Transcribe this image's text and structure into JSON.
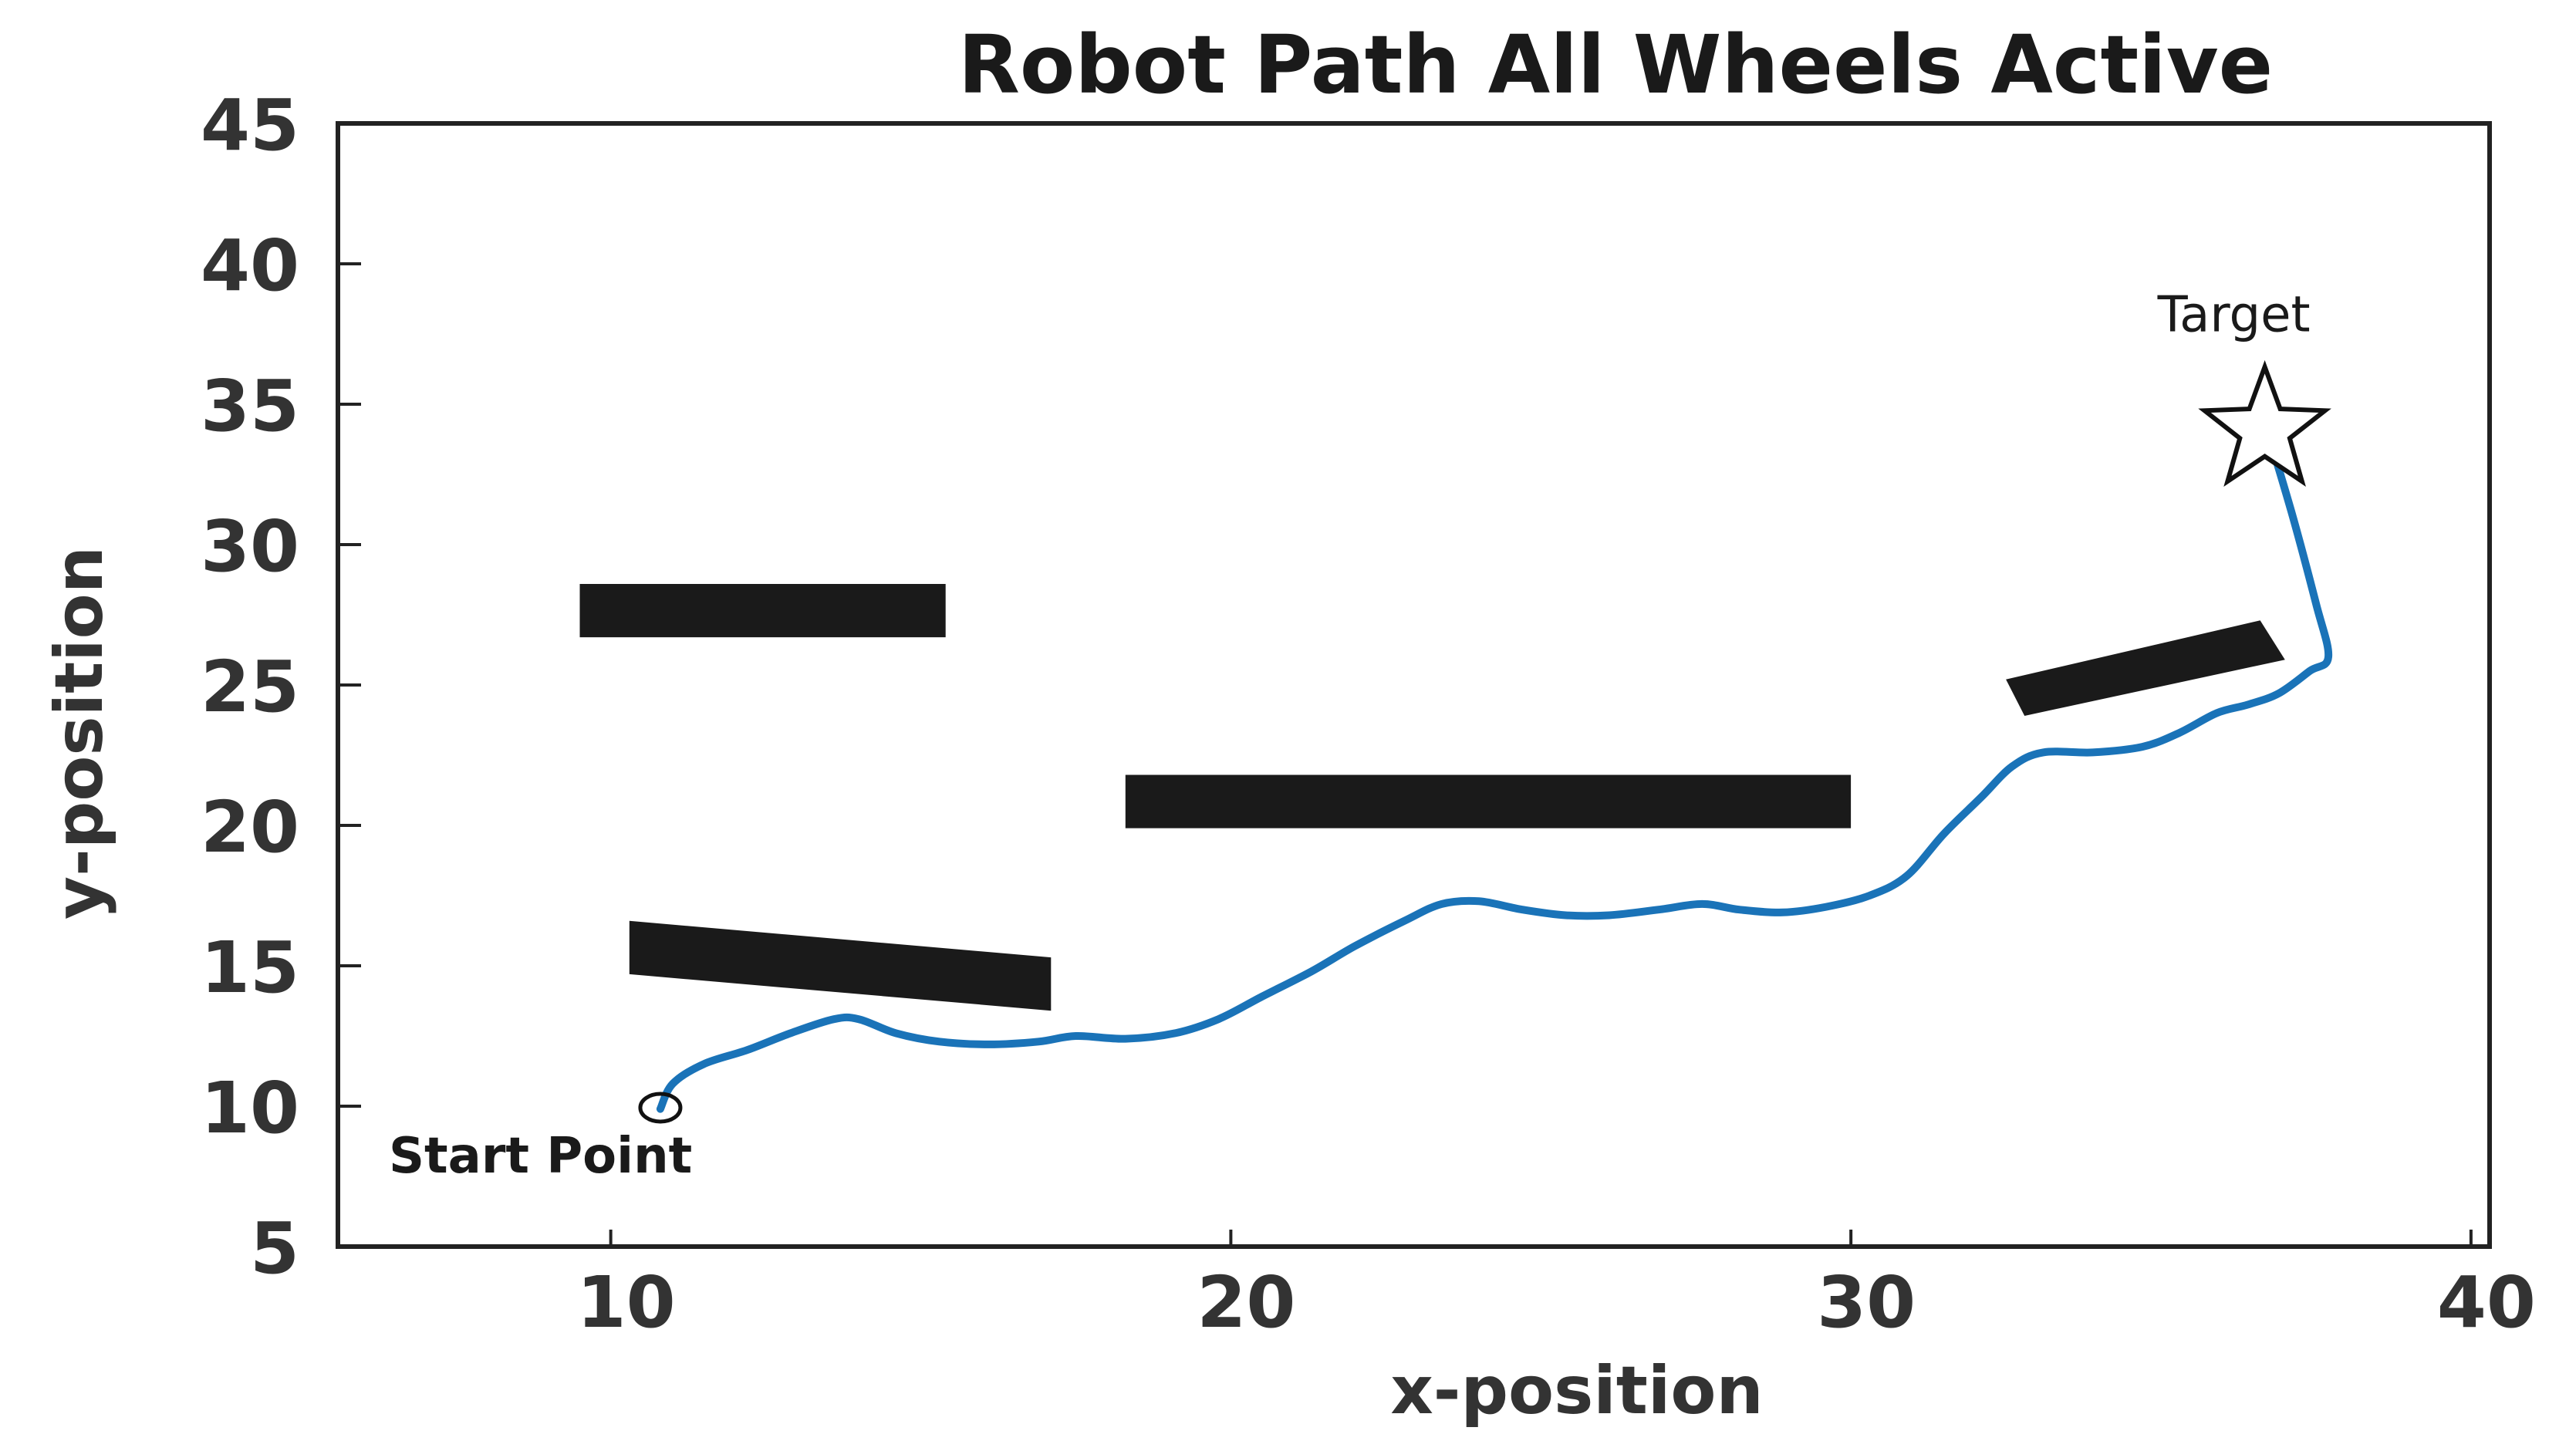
{
  "chart_data": {
    "type": "line",
    "title": "Robot Path All Wheels Active",
    "xlabel": "x-position",
    "ylabel": "y-position",
    "xlim": [
      5.6,
      40.3
    ],
    "ylim": [
      5,
      45
    ],
    "xticks": [
      10,
      20,
      30,
      40
    ],
    "yticks": [
      5,
      10,
      15,
      20,
      25,
      30,
      35,
      40,
      45
    ],
    "grid": false,
    "colors": {
      "path": "#1a73b8",
      "obstacle": "#1a1a1a",
      "axis": "#222222"
    },
    "series": [
      {
        "x": [
          10.8,
          11.0,
          11.5,
          12.2,
          12.9,
          13.6,
          14.0,
          14.6,
          15.3,
          16.1,
          16.9,
          17.5,
          18.3,
          19.1,
          19.8,
          20.5,
          21.3,
          22.0,
          22.8,
          23.4,
          24.0,
          24.7,
          25.4,
          26.1,
          26.9,
          27.6,
          28.2,
          28.9,
          29.6,
          30.3,
          30.9,
          31.5,
          32.1,
          32.6,
          33.1,
          33.9,
          34.7,
          35.3,
          35.9,
          36.4,
          36.9,
          37.4,
          37.7,
          37.5,
          37.1,
          36.6
        ],
        "y": [
          9.9,
          10.8,
          11.5,
          12.0,
          12.6,
          13.1,
          13.1,
          12.6,
          12.3,
          12.2,
          12.3,
          12.5,
          12.4,
          12.6,
          13.1,
          13.9,
          14.8,
          15.7,
          16.6,
          17.2,
          17.3,
          17.0,
          16.8,
          16.8,
          17.0,
          17.2,
          17.0,
          16.9,
          17.1,
          17.5,
          18.2,
          19.7,
          21.0,
          22.1,
          22.6,
          22.6,
          22.8,
          23.3,
          24.0,
          24.3,
          24.7,
          25.5,
          26.0,
          27.9,
          31.2,
          34.9
        ]
      }
    ],
    "obstacles": [
      {
        "corners": [
          [
            9.5,
            26.7
          ],
          [
            15.4,
            26.7
          ],
          [
            15.4,
            28.6
          ],
          [
            9.5,
            28.6
          ]
        ]
      },
      {
        "corners": [
          [
            10.3,
            14.7
          ],
          [
            17.1,
            13.4
          ],
          [
            17.1,
            15.3
          ],
          [
            10.3,
            16.6
          ]
        ]
      },
      {
        "corners": [
          [
            18.3,
            19.9
          ],
          [
            30.0,
            19.9
          ],
          [
            30.0,
            21.8
          ],
          [
            18.3,
            21.8
          ]
        ]
      },
      {
        "corners": [
          [
            32.8,
            23.9
          ],
          [
            37.0,
            25.9
          ],
          [
            36.6,
            27.3
          ],
          [
            32.5,
            25.2
          ]
        ]
      }
    ],
    "annotations": {
      "start_label": "Start Point",
      "start_point": [
        10.8,
        10.0
      ],
      "target_label": "Target",
      "target_point": [
        36.6,
        34.9
      ]
    }
  }
}
